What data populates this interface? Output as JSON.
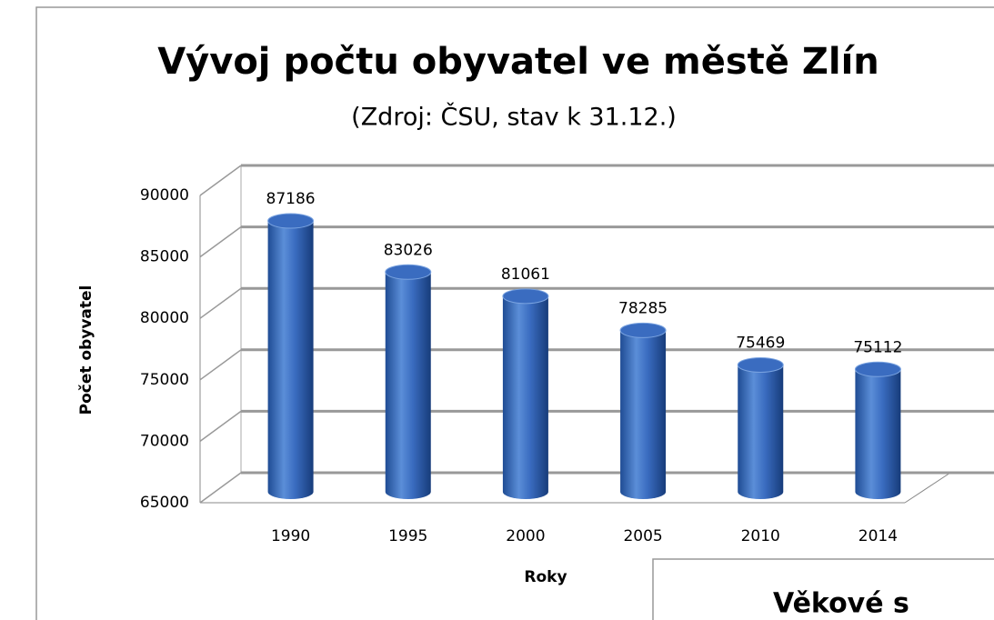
{
  "chart_data": {
    "type": "bar",
    "title": "Vývoj počtu obyvatel ve městě Zlín",
    "subtitle": "(Zdroj: ČSU, stav k 31.12.)",
    "x_label": "Roky",
    "y_label": "Počet obyvatel",
    "categories": [
      "1990",
      "1995",
      "2000",
      "2005",
      "2010",
      "2014"
    ],
    "values": [
      87186,
      83026,
      81061,
      78285,
      75469,
      75112
    ],
    "color": "#3a6cc0",
    "ylim": [
      65000,
      90000
    ],
    "yticks": [
      65000,
      70000,
      75000,
      80000,
      85000,
      90000
    ],
    "grid": true
  },
  "second_box": {
    "title": "Věkové s"
  }
}
